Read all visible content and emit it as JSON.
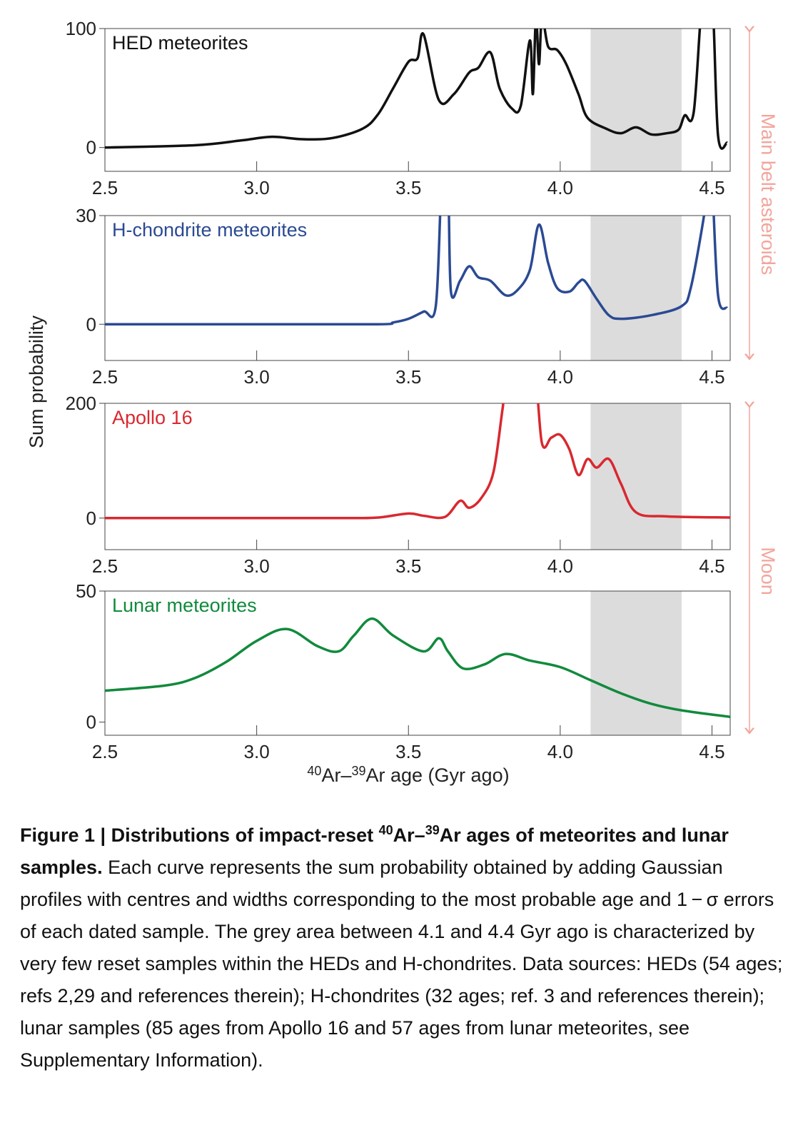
{
  "chart_data": [
    {
      "type": "line",
      "title": "HED meteorites",
      "color": "#111111",
      "x": [
        2.5,
        2.8,
        2.95,
        3.05,
        3.15,
        3.25,
        3.35,
        3.4,
        3.45,
        3.5,
        3.53,
        3.55,
        3.6,
        3.65,
        3.7,
        3.73,
        3.77,
        3.8,
        3.84,
        3.87,
        3.9,
        3.91,
        3.92,
        3.93,
        3.94,
        3.96,
        3.99,
        4.02,
        4.06,
        4.09,
        4.15,
        4.2,
        4.25,
        4.3,
        4.35,
        4.39,
        4.41,
        4.44,
        4.47,
        4.5,
        4.52,
        4.55
      ],
      "values": [
        0,
        2,
        6,
        9,
        7,
        8,
        16,
        28,
        50,
        72,
        75,
        95,
        40,
        45,
        63,
        67,
        80,
        50,
        33,
        35,
        90,
        45,
        110,
        70,
        110,
        85,
        82,
        70,
        45,
        25,
        16,
        12,
        17,
        11,
        12,
        15,
        27,
        30,
        130,
        130,
        10,
        4
      ],
      "xlim": [
        2.5,
        4.56
      ],
      "xticks": [
        2.5,
        {
          "value": 3,
          "label": "3.0"
        },
        3.5,
        {
          "value": 4,
          "label": "4.0"
        },
        4.5
      ],
      "ylim": [
        -20,
        100
      ],
      "yticks": [
        0,
        100
      ],
      "shade": [
        4.1,
        4.4
      ]
    },
    {
      "type": "line",
      "title": "H-chondrite meteorites",
      "color": "#2b4a93",
      "x": [
        2.5,
        3.0,
        3.4,
        3.45,
        3.5,
        3.55,
        3.59,
        3.61,
        3.63,
        3.64,
        3.67,
        3.7,
        3.73,
        3.77,
        3.82,
        3.86,
        3.9,
        3.93,
        3.96,
        3.99,
        4.03,
        4.06,
        4.08,
        4.12,
        4.16,
        4.2,
        4.3,
        4.4,
        4.43,
        4.47,
        4.49,
        4.5,
        4.52,
        4.55
      ],
      "values": [
        0,
        0,
        0,
        0.5,
        1.5,
        3.5,
        5,
        40,
        40,
        9,
        12,
        16,
        13,
        12,
        8,
        9.5,
        15,
        27.5,
        17,
        10,
        9,
        11.5,
        12,
        7,
        2.5,
        1.5,
        2.5,
        5,
        10,
        28,
        40,
        40,
        8,
        4.5
      ],
      "xlim": [
        2.5,
        4.56
      ],
      "xticks": [
        2.5,
        {
          "value": 3,
          "label": "3.0"
        },
        3.5,
        {
          "value": 4,
          "label": "4.0"
        },
        4.5
      ],
      "ylim": [
        -10,
        30
      ],
      "yticks": [
        0,
        30
      ],
      "shade": [
        4.1,
        4.4
      ]
    },
    {
      "type": "line",
      "title": "Apollo 16",
      "color": "#d9282f",
      "x": [
        2.5,
        3.0,
        3.3,
        3.4,
        3.5,
        3.55,
        3.62,
        3.67,
        3.7,
        3.74,
        3.78,
        3.81,
        3.83,
        3.91,
        3.94,
        3.97,
        4.0,
        4.03,
        4.06,
        4.09,
        4.12,
        4.16,
        4.2,
        4.25,
        4.35,
        4.56
      ],
      "values": [
        0,
        0,
        0,
        1,
        8,
        4,
        2,
        30,
        18,
        35,
        80,
        190,
        260,
        260,
        130,
        140,
        145,
        120,
        75,
        103,
        88,
        103,
        60,
        10,
        3,
        1
      ],
      "xlim": [
        2.5,
        4.56
      ],
      "xticks": [
        2.5,
        {
          "value": 3,
          "label": "3.0"
        },
        3.5,
        {
          "value": 4,
          "label": "4.0"
        },
        4.5
      ],
      "ylim": [
        -55,
        200
      ],
      "yticks": [
        0,
        200
      ],
      "shade": [
        4.1,
        4.4
      ]
    },
    {
      "type": "line",
      "title": "Lunar meteorites",
      "color": "#118a3c",
      "x": [
        2.5,
        2.7,
        2.8,
        2.9,
        3.0,
        3.1,
        3.2,
        3.27,
        3.32,
        3.38,
        3.45,
        3.55,
        3.6,
        3.63,
        3.68,
        3.75,
        3.82,
        3.9,
        4.0,
        4.1,
        4.2,
        4.3,
        4.4,
        4.56
      ],
      "values": [
        12,
        14,
        17,
        23,
        31,
        35.5,
        29,
        27,
        33,
        39.5,
        33,
        27,
        32,
        27,
        20.5,
        22,
        26,
        23.5,
        21,
        16,
        11,
        7,
        4.5,
        2
      ],
      "xlim": [
        2.5,
        4.56
      ],
      "xticks": [
        2.5,
        {
          "value": 3,
          "label": "3.0"
        },
        3.5,
        {
          "value": 4,
          "label": "4.0"
        },
        4.5
      ],
      "ylim": [
        -5,
        50
      ],
      "yticks": [
        0,
        50
      ],
      "shade": [
        4.1,
        4.4
      ]
    }
  ],
  "ylabel": "Sum probability",
  "xlabel": [
    "40",
    "Ar–",
    "39",
    "Ar age (Gyr ago)"
  ],
  "side_labels": [
    "Main belt asteroids",
    "Moon"
  ],
  "caption": {
    "title": [
      "Figure 1 | Distributions of impact-reset ",
      "40",
      "Ar–",
      "39",
      "Ar ages of meteorites and lunar samples."
    ],
    "body": " Each curve represents the sum probability obtained by adding Gaussian profiles with centres and widths corresponding to the most probable age and 1 − σ errors of each dated sample. The grey area between 4.1 and 4.4 Gyr ago is characterized by very few reset samples within the HEDs and H-chondrites. Data sources: HEDs (54 ages; refs 2,29 and references therein); H-chondrites (32 ages; ref. 3 and references therein); lunar samples (85 ages from Apollo 16 and 57 ages from lunar meteorites, see Supplementary Information)."
  }
}
